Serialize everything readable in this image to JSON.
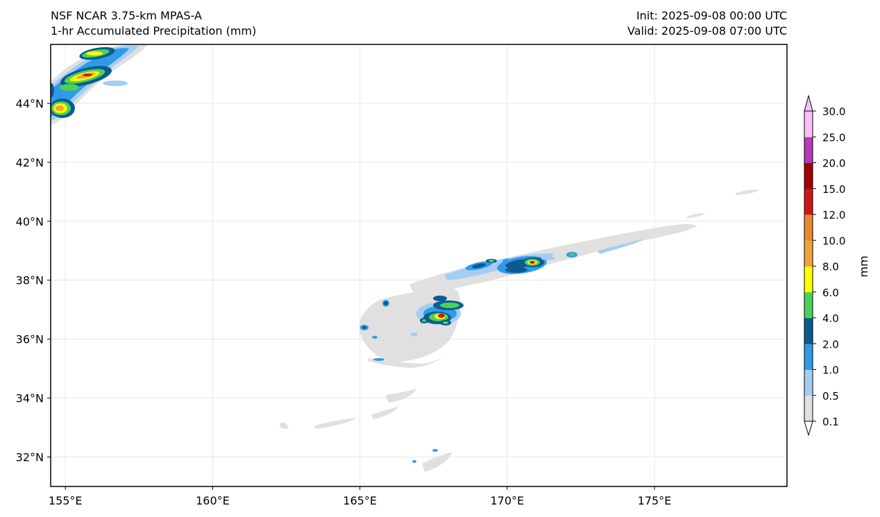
{
  "header": {
    "model": "NSF NCAR 3.75-km MPAS-A",
    "field": "1-hr Accumulated Precipitation (mm)",
    "init": "Init: 2025-09-08 00:00 UTC",
    "valid": "Valid: 2025-09-08 07:00 UTC"
  },
  "map": {
    "lon_range": [
      154.5,
      179.5
    ],
    "lat_range": [
      31.0,
      46.0
    ],
    "lon_ticks": [
      {
        "value": 155,
        "label": "155°E"
      },
      {
        "value": 160,
        "label": "160°E"
      },
      {
        "value": 165,
        "label": "165°E"
      },
      {
        "value": 170,
        "label": "170°E"
      },
      {
        "value": 175,
        "label": "175°E"
      }
    ],
    "lat_ticks": [
      {
        "value": 32,
        "label": "32°N"
      },
      {
        "value": 34,
        "label": "34°N"
      },
      {
        "value": 36,
        "label": "36°N"
      },
      {
        "value": 38,
        "label": "38°N"
      },
      {
        "value": 40,
        "label": "40°N"
      },
      {
        "value": 42,
        "label": "42°N"
      },
      {
        "value": 44,
        "label": "44°N"
      }
    ],
    "gridlines": true
  },
  "colorbar": {
    "unit_label": "mm",
    "levels": [
      "0.1",
      "0.5",
      "1.0",
      "2.0",
      "4.0",
      "6.0",
      "8.0",
      "10.0",
      "12.0",
      "15.0",
      "20.0",
      "25.0",
      "30.0"
    ],
    "colors": [
      "#e0e0e0",
      "#a4cdf5",
      "#2f9be6",
      "#0d5a8f",
      "#4dd05a",
      "#ffff00",
      "#f2a23a",
      "#e8892f",
      "#d01616",
      "#a00000",
      "#b53ab8",
      "#f8c0f6"
    ],
    "extend": "both"
  }
}
